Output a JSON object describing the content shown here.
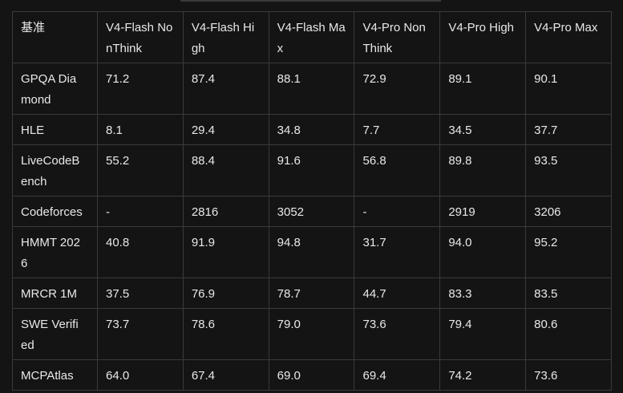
{
  "table": {
    "header": [
      "基准",
      "V4-Flash NonThink",
      "V4-Flash High",
      "V4-Flash Max",
      "V4-Pro NonThink",
      "V4-Pro High",
      "V4-Pro Max"
    ],
    "rows": [
      [
        "GPQA Diamond",
        "71.2",
        "87.4",
        "88.1",
        "72.9",
        "89.1",
        "90.1"
      ],
      [
        "HLE",
        "8.1",
        "29.4",
        "34.8",
        "7.7",
        "34.5",
        "37.7"
      ],
      [
        "LiveCodeBench",
        "55.2",
        "88.4",
        "91.6",
        "56.8",
        "89.8",
        "93.5"
      ],
      [
        "Codeforces",
        "-",
        "2816",
        "3052",
        "-",
        "2919",
        "3206"
      ],
      [
        "HMMT 2026",
        "40.8",
        "91.9",
        "94.8",
        "31.7",
        "94.0",
        "95.2"
      ],
      [
        "MRCR 1M",
        "37.5",
        "76.9",
        "78.7",
        "44.7",
        "83.3",
        "83.5"
      ],
      [
        "SWE Verified",
        "73.7",
        "78.6",
        "79.0",
        "73.6",
        "79.4",
        "80.6"
      ],
      [
        "MCPAtlas",
        "64.0",
        "67.4",
        "69.0",
        "69.4",
        "74.2",
        "73.6"
      ]
    ]
  }
}
